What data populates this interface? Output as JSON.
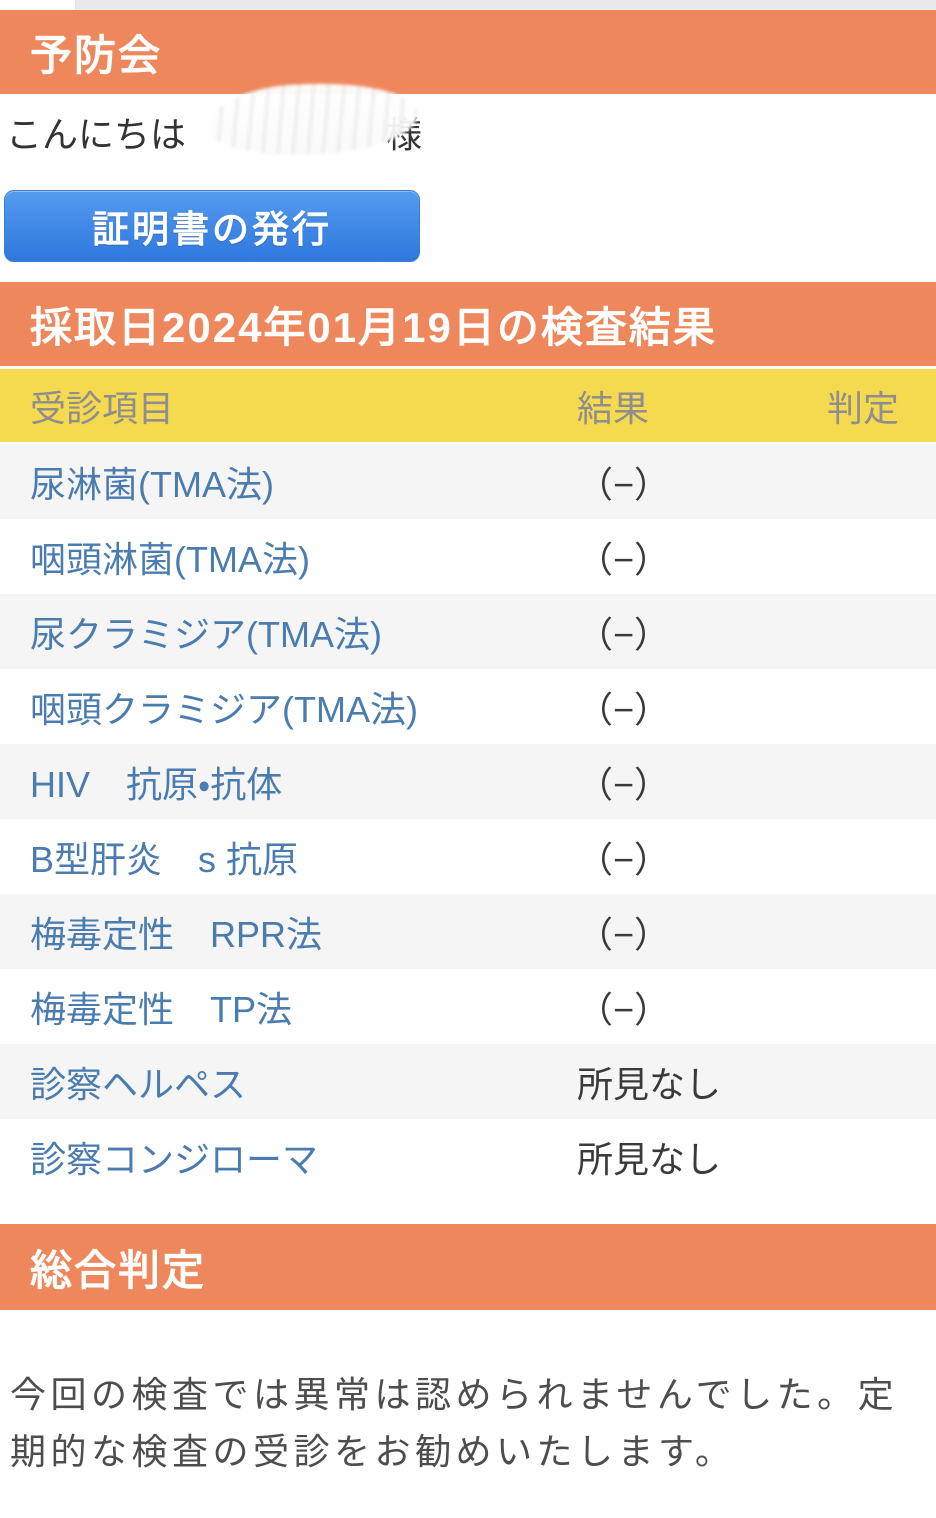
{
  "header": {
    "title": "予防会"
  },
  "greeting": {
    "prefix": "こんにちは",
    "suffix": "様"
  },
  "buttons": {
    "issue_certificate": "証明書の発行"
  },
  "results": {
    "header": "採取日2024年01月19日の検査結果",
    "columns": [
      "受診項目",
      "結果",
      "判定"
    ],
    "rows": [
      {
        "item": "尿淋菌(TMA法)",
        "result": "（−）",
        "judgement": ""
      },
      {
        "item": "咽頭淋菌(TMA法)",
        "result": "（−）",
        "judgement": ""
      },
      {
        "item": "尿クラミジア(TMA法)",
        "result": "（−）",
        "judgement": ""
      },
      {
        "item": "咽頭クラミジア(TMA法)",
        "result": "（−）",
        "judgement": ""
      },
      {
        "item": "HIV　抗原・抗体",
        "result": "（−）",
        "judgement": ""
      },
      {
        "item": "B型肝炎　s 抗原",
        "result": "（−）",
        "judgement": ""
      },
      {
        "item": "梅毒定性　RPR法",
        "result": "（−）",
        "judgement": ""
      },
      {
        "item": "梅毒定性　TP法",
        "result": "（−）",
        "judgement": ""
      },
      {
        "item": "診察ヘルペス",
        "result": "所見なし",
        "judgement": ""
      },
      {
        "item": "診察コンジローマ",
        "result": "所見なし",
        "judgement": ""
      }
    ]
  },
  "overall": {
    "header": "総合判定",
    "summary": "今回の検査では異常は認められませんでした。定期的な検査の受診をお勧めいたします。"
  },
  "colors": {
    "accent_orange": "#ef875c",
    "table_header_yellow": "#f5d94e",
    "link_blue": "#4a7cb0",
    "button_blue": "#3f87e5"
  }
}
